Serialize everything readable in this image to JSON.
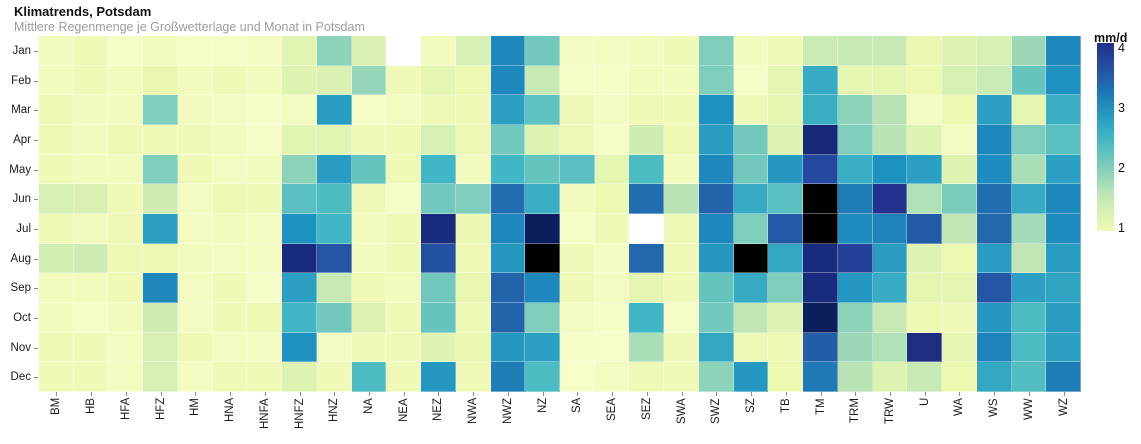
{
  "header": {
    "title": "Klimatrends, Potsdam",
    "subtitle": "Mittlere Regenmenge je Großwetterlage und Monat in Potsdam"
  },
  "chart_data": {
    "type": "heatmap",
    "title": "Klimatrends, Potsdam",
    "subtitle": "Mittlere Regenmenge je Großwetterlage und Monat in Potsdam",
    "unit": "mm/d",
    "xlabel": "",
    "ylabel": "",
    "x_categories": [
      "BM",
      "HB",
      "HFA",
      "HFZ",
      "HM",
      "HNA",
      "HNFA",
      "HNFZ",
      "HNZ",
      "NA",
      "NEA",
      "NEZ",
      "NWA",
      "NWZ",
      "NZ",
      "SA",
      "SEA",
      "SEZ",
      "SWA",
      "SWZ",
      "SZ",
      "TB",
      "TM",
      "TRM",
      "TRW",
      "U",
      "WA",
      "WS",
      "WW",
      "WZ"
    ],
    "y_categories": [
      "Jan",
      "Feb",
      "Mar",
      "Apr",
      "May",
      "Jun",
      "Jul",
      "Aug",
      "Sep",
      "Oct",
      "Nov",
      "Dec"
    ],
    "values": [
      [
        0.85,
        0.95,
        0.75,
        0.85,
        0.75,
        0.75,
        0.8,
        1.15,
        1.9,
        1.25,
        null,
        0.85,
        1.3,
        3.1,
        2.1,
        0.8,
        0.8,
        0.85,
        0.9,
        2.0,
        0.85,
        0.9,
        1.45,
        1.5,
        1.5,
        1.05,
        1.2,
        1.3,
        1.8,
        3.1
      ],
      [
        0.85,
        0.9,
        0.85,
        1.05,
        0.85,
        0.9,
        0.85,
        1.2,
        1.25,
        1.85,
        0.9,
        1.1,
        1.0,
        3.1,
        1.5,
        0.75,
        0.75,
        0.85,
        0.85,
        2.0,
        0.75,
        1.1,
        2.65,
        1.1,
        1.1,
        1.0,
        1.3,
        1.45,
        2.2,
        3.0
      ],
      [
        0.9,
        0.85,
        0.85,
        2.0,
        0.85,
        0.8,
        0.75,
        0.8,
        2.85,
        0.75,
        0.8,
        0.9,
        0.9,
        2.8,
        2.25,
        0.9,
        0.8,
        0.95,
        0.95,
        3.0,
        0.9,
        1.1,
        2.6,
        1.9,
        1.6,
        0.8,
        1.0,
        2.8,
        1.1,
        2.6
      ],
      [
        0.9,
        0.85,
        0.95,
        0.95,
        0.9,
        0.85,
        0.75,
        1.15,
        1.15,
        0.9,
        0.95,
        1.3,
        0.95,
        2.1,
        1.2,
        0.9,
        0.75,
        1.4,
        0.95,
        2.85,
        2.1,
        1.2,
        4.25,
        2.0,
        1.6,
        1.2,
        0.8,
        3.1,
        2.0,
        2.3
      ],
      [
        0.9,
        0.85,
        0.85,
        2.0,
        0.9,
        0.8,
        0.85,
        1.9,
        2.85,
        2.2,
        0.9,
        2.5,
        0.85,
        2.5,
        2.2,
        2.3,
        1.1,
        2.4,
        0.85,
        3.1,
        2.1,
        2.9,
        3.75,
        2.6,
        3.0,
        2.8,
        1.2,
        3.05,
        1.7,
        2.8
      ],
      [
        1.3,
        1.25,
        0.9,
        1.4,
        0.8,
        1.0,
        0.9,
        2.3,
        2.4,
        0.9,
        0.75,
        2.1,
        2.0,
        3.35,
        2.6,
        0.85,
        1.0,
        3.35,
        1.6,
        3.45,
        2.65,
        2.3,
        5,
        3.2,
        4.05,
        1.65,
        2.05,
        3.35,
        2.65,
        3.1
      ],
      [
        0.9,
        0.85,
        0.95,
        2.8,
        0.8,
        0.85,
        0.8,
        3.0,
        2.5,
        0.85,
        0.9,
        4.2,
        1.05,
        3.1,
        4.45,
        0.75,
        0.9,
        null,
        0.9,
        3.1,
        2.0,
        3.55,
        5,
        3.05,
        3.15,
        3.55,
        1.55,
        3.4,
        1.75,
        3.05
      ],
      [
        1.35,
        1.4,
        0.9,
        1.0,
        0.85,
        0.8,
        0.8,
        4.2,
        3.6,
        0.85,
        0.9,
        3.65,
        0.95,
        2.9,
        5,
        0.9,
        0.8,
        3.4,
        0.9,
        2.9,
        5,
        2.7,
        4.2,
        3.85,
        2.85,
        1.2,
        1.0,
        2.85,
        1.55,
        2.85
      ],
      [
        0.85,
        0.85,
        0.95,
        3.1,
        0.8,
        0.9,
        0.75,
        2.8,
        1.5,
        0.95,
        0.85,
        2.1,
        1.05,
        3.45,
        3.1,
        0.9,
        0.8,
        1.1,
        0.9,
        2.2,
        2.65,
        2.0,
        4.2,
        2.9,
        2.65,
        1.1,
        1.1,
        3.6,
        2.8,
        2.75
      ],
      [
        0.85,
        0.75,
        0.85,
        1.4,
        0.8,
        0.9,
        0.95,
        2.5,
        2.1,
        1.2,
        0.9,
        2.2,
        0.9,
        3.45,
        2.0,
        0.8,
        0.75,
        2.5,
        0.75,
        2.1,
        1.55,
        1.2,
        4.45,
        1.9,
        1.5,
        1.0,
        0.9,
        2.9,
        2.4,
        2.85
      ],
      [
        0.9,
        0.9,
        0.8,
        1.3,
        0.95,
        0.8,
        0.8,
        3.0,
        0.8,
        0.9,
        0.9,
        1.2,
        1.05,
        2.9,
        2.8,
        0.75,
        0.7,
        1.7,
        0.9,
        2.7,
        0.95,
        0.95,
        3.5,
        1.8,
        1.65,
        4.15,
        1.1,
        3.15,
        2.4,
        2.8
      ],
      [
        0.9,
        0.9,
        0.8,
        1.3,
        0.8,
        0.9,
        0.9,
        1.2,
        0.9,
        2.4,
        0.9,
        2.9,
        0.9,
        3.2,
        2.4,
        0.7,
        0.8,
        0.9,
        0.9,
        1.9,
        2.9,
        1.0,
        3.25,
        1.6,
        1.2,
        1.5,
        1.0,
        2.7,
        2.35,
        3.2
      ]
    ],
    "missing_cells": [
      [
        "Jan",
        "NEA"
      ],
      [
        "Jul",
        "SEZ"
      ]
    ],
    "out_of_scale_cells": [
      [
        "Jun",
        "TM"
      ],
      [
        "Jul",
        "TM"
      ],
      [
        "Aug",
        "NZ"
      ],
      [
        "Aug",
        "SZ"
      ]
    ],
    "colormap": "YlGnBu",
    "colormap_stops": [
      "#ffffd9",
      "#edf8b1",
      "#c7e9b4",
      "#7fcdbb",
      "#41b6c4",
      "#1d91c0",
      "#225ea8",
      "#253494",
      "#081d58"
    ],
    "value_domain": [
      0.5,
      4.5
    ],
    "missing_color": "#ffffff",
    "overflow_color": "#000000",
    "legend": {
      "title": "mm/d",
      "position": "right",
      "min": 0.95,
      "max": 4.08,
      "ticks": [
        4,
        3,
        2,
        1
      ]
    },
    "grid": false
  }
}
